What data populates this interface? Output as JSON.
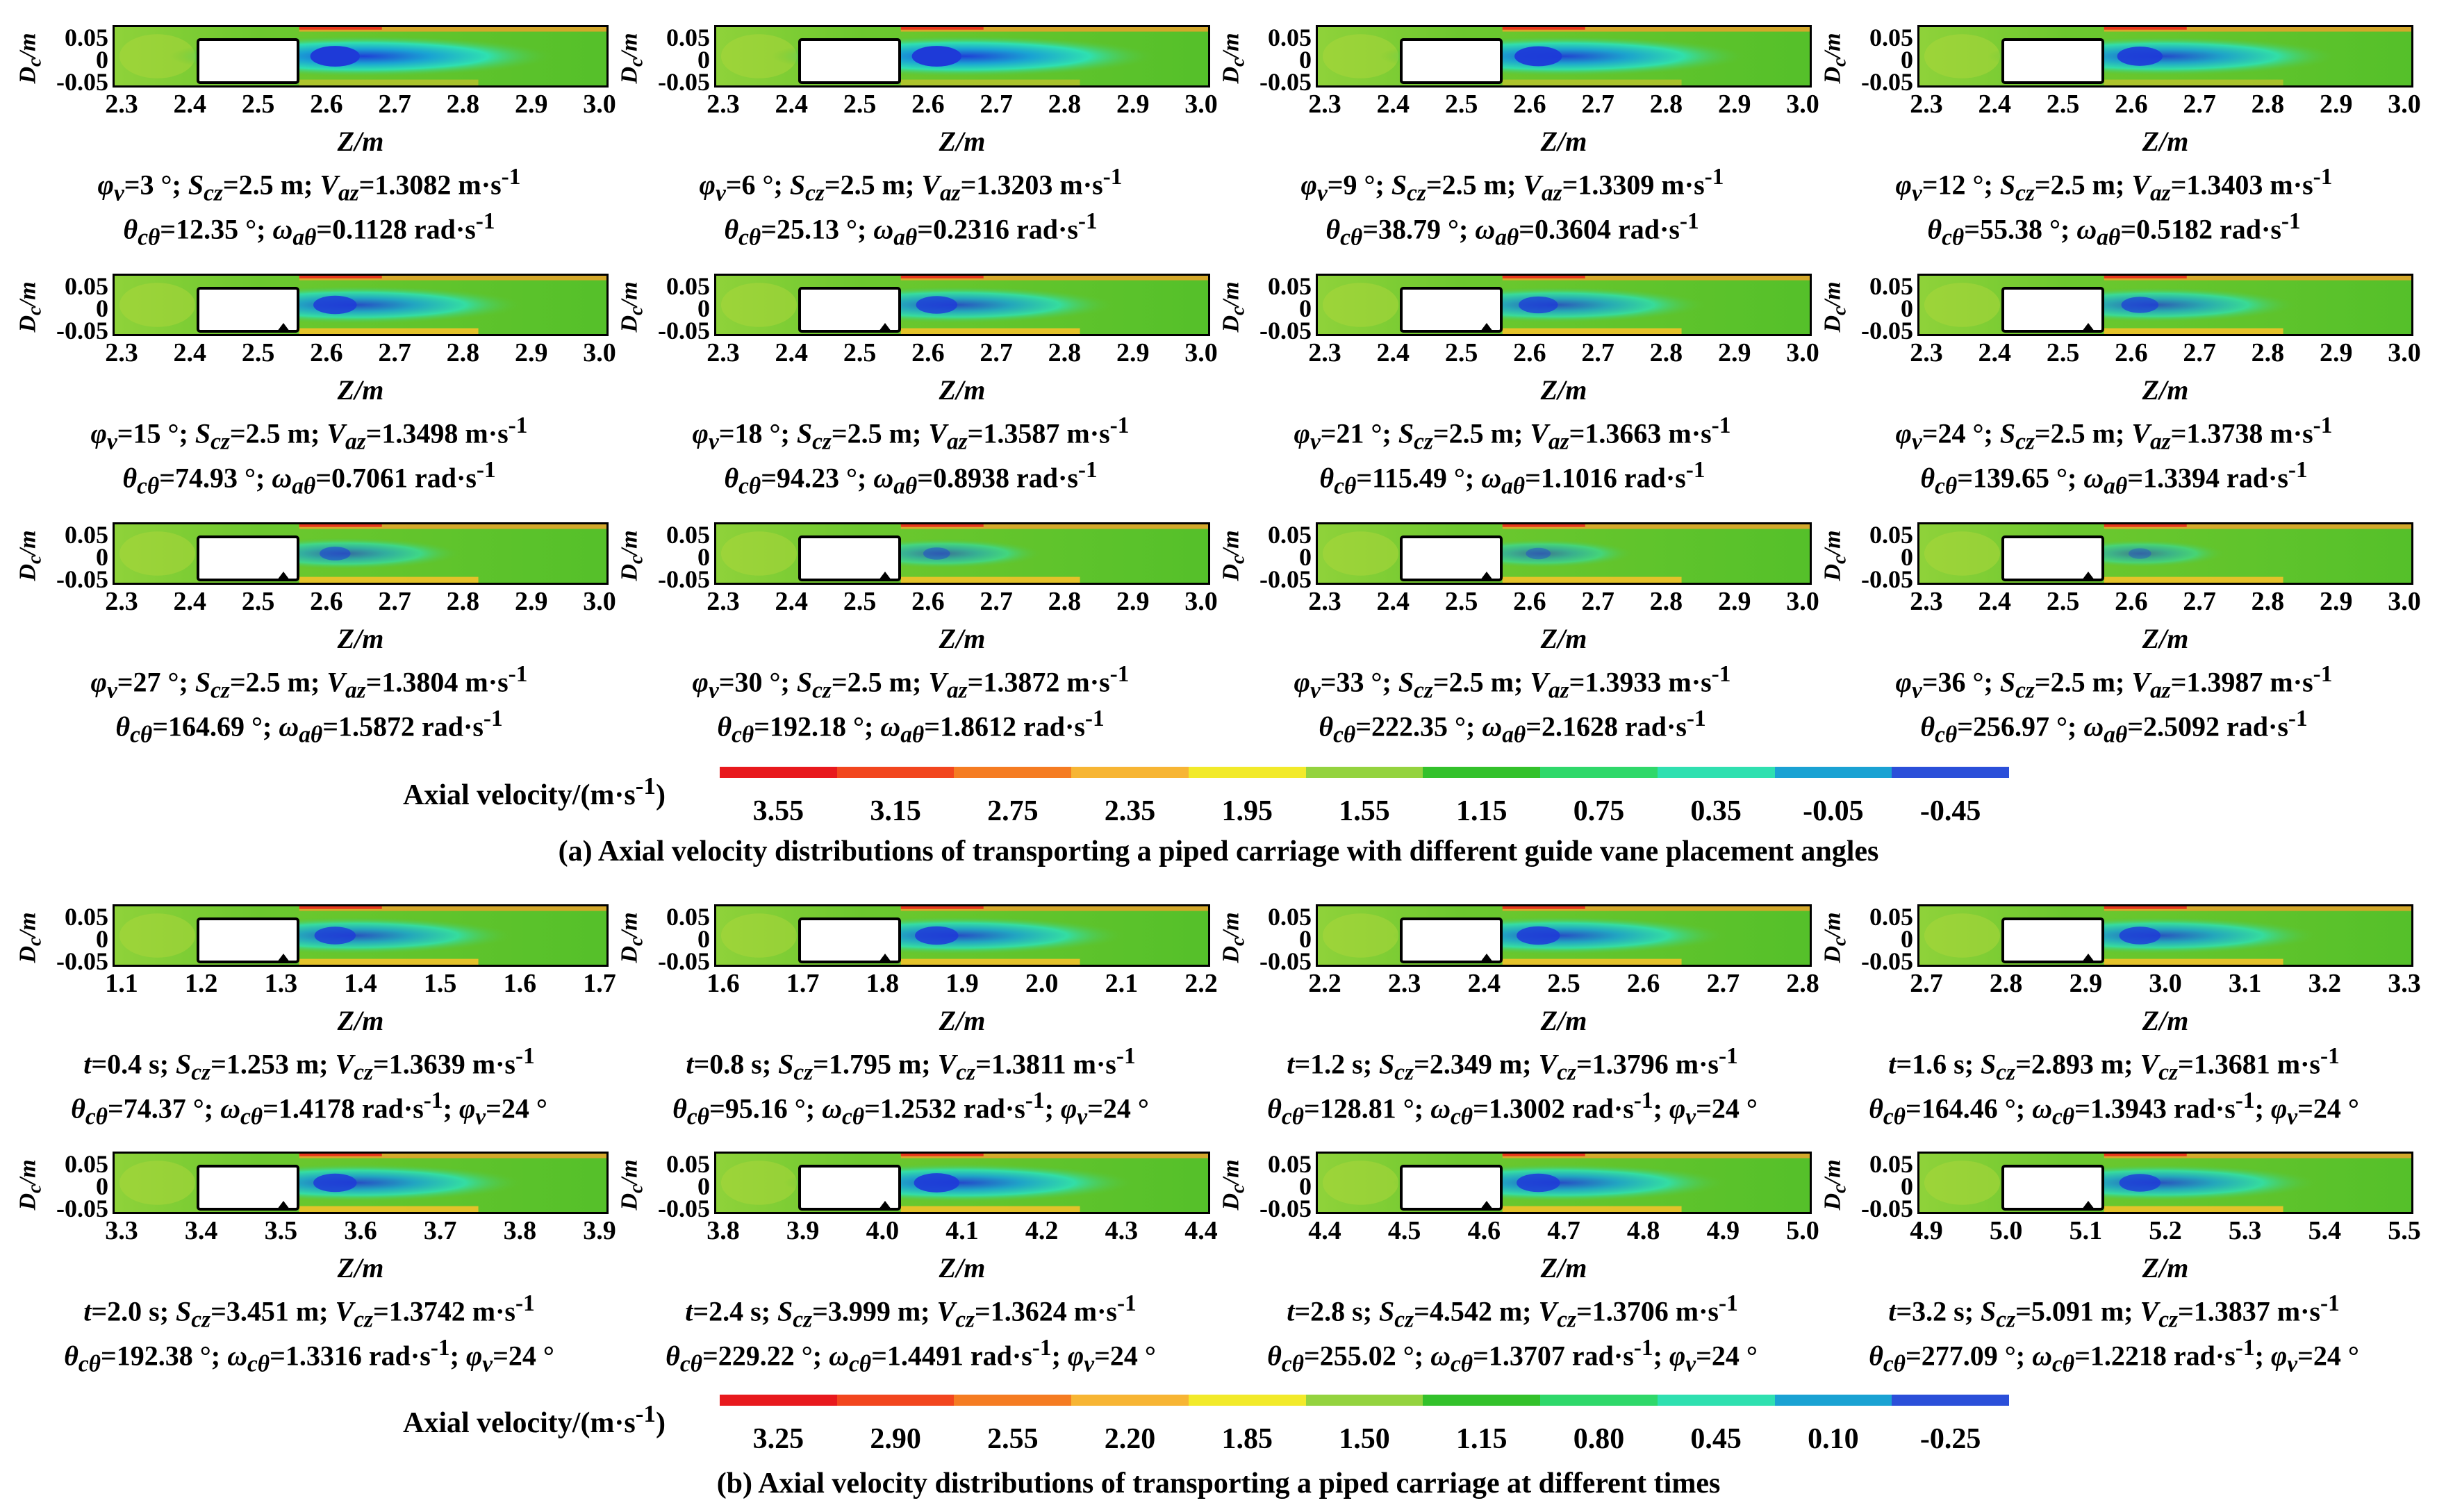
{
  "axis": {
    "ylabel": "Dc/m",
    "xlabel": "Z/m",
    "yticks": [
      "0.05",
      "0",
      "-0.05"
    ]
  },
  "colors": {
    "legend_a": [
      "#e8191d",
      "#f2461e",
      "#f57c22",
      "#f7b534",
      "#f2ea2a",
      "#94d33f",
      "#33c12b",
      "#2fd86a",
      "#2fe0b0",
      "#1aa2d3",
      "#2b4fd9"
    ],
    "legend_b": [
      "#e8191d",
      "#f2461e",
      "#f57c22",
      "#f7b534",
      "#f2ea2a",
      "#94d33f",
      "#33c12b",
      "#2fd86a",
      "#2fe0b0",
      "#1aa2d3",
      "#2b4fd9"
    ]
  },
  "panel_a": {
    "xticks": [
      "2.3",
      "2.4",
      "2.5",
      "2.6",
      "2.7",
      "2.8",
      "2.9",
      "3.0"
    ],
    "cells": [
      {
        "line1": "φv=3 °; Scz=2.5 m; Vaz=1.3082 m·s-1",
        "line2": "θcθ=12.35 °; ωaθ=0.1128 rad·s-1",
        "wake": 1.0,
        "wheel": false
      },
      {
        "line1": "φv=6 °; Scz=2.5 m; Vaz=1.3203 m·s-1",
        "line2": "θcθ=25.13 °; ωaθ=0.2316 rad·s-1",
        "wake": 1.0,
        "wheel": false
      },
      {
        "line1": "φv=9 °; Scz=2.5 m; Vaz=1.3309 m·s-1",
        "line2": "θcθ=38.79 °; ωaθ=0.3604 rad·s-1",
        "wake": 0.95,
        "wheel": false
      },
      {
        "line1": "φv=12 °; Scz=2.5 m; Vaz=1.3403 m·s-1",
        "line2": "θcθ=55.38 °; ωaθ=0.5182 rad·s-1",
        "wake": 0.9,
        "wheel": false
      },
      {
        "line1": "φv=15 °; Scz=2.5 m; Vaz=1.3498 m·s-1",
        "line2": "θcθ=74.93 °; ωaθ=0.7061 rad·s-1",
        "wake": 0.85,
        "wheel": true
      },
      {
        "line1": "φv=18 °; Scz=2.5 m; Vaz=1.3587 m·s-1",
        "line2": "θcθ=94.23 °; ωaθ=0.8938 rad·s-1",
        "wake": 0.8,
        "wheel": true
      },
      {
        "line1": "φv=21 °; Scz=2.5 m; Vaz=1.3663 m·s-1",
        "line2": "θcθ=115.49 °; ωaθ=1.1016 rad·s-1",
        "wake": 0.75,
        "wheel": true
      },
      {
        "line1": "φv=24 °; Scz=2.5 m; Vaz=1.3738 m·s-1",
        "line2": "θcθ=139.65 °; ωaθ=1.3394 rad·s-1",
        "wake": 0.7,
        "wheel": true
      },
      {
        "line1": "φv=27 °; Scz=2.5 m; Vaz=1.3804 m·s-1",
        "line2": "θcθ=164.69 °; ωaθ=1.5872 rad·s-1",
        "wake": 0.55,
        "wheel": true
      },
      {
        "line1": "φv=30 °; Scz=2.5 m; Vaz=1.3872 m·s-1",
        "line2": "θcθ=192.18 °; ωaθ=1.8612 rad·s-1",
        "wake": 0.45,
        "wheel": true
      },
      {
        "line1": "φv=33 °; Scz=2.5 m; Vaz=1.3933 m·s-1",
        "line2": "θcθ=222.35 °; ωaθ=2.1628 rad·s-1",
        "wake": 0.4,
        "wheel": true
      },
      {
        "line1": "φv=36 °; Scz=2.5 m; Vaz=1.3987 m·s-1",
        "line2": "θcθ=256.97 °; ωaθ=2.5092 rad·s-1",
        "wake": 0.35,
        "wheel": true
      }
    ]
  },
  "legend_a": {
    "title": "Axial velocity/(m·s-1)",
    "ticks": [
      "3.55",
      "3.15",
      "2.75",
      "2.35",
      "1.95",
      "1.55",
      "1.15",
      "0.75",
      "0.35",
      "-0.05",
      "-0.45"
    ]
  },
  "caption_a": "(a) Axial velocity distributions of transporting a piped carriage with different guide vane placement angles",
  "panel_b": {
    "cells": [
      {
        "xticks": [
          "1.1",
          "1.2",
          "1.3",
          "1.4",
          "1.5",
          "1.6",
          "1.7"
        ],
        "line1": "t=0.4 s; Scz=1.253 m; Vcz=1.3639 m·s-1",
        "line2": "θcθ=74.37 °; ωcθ=1.4178 rad·s-1; φv=24 °",
        "wake": 0.8
      },
      {
        "xticks": [
          "1.6",
          "1.7",
          "1.8",
          "1.9",
          "2.0",
          "2.1",
          "2.2"
        ],
        "line1": "t=0.8 s; Scz=1.795 m; Vcz=1.3811 m·s-1",
        "line2": "θcθ=95.16 °; ωcθ=1.2532 rad·s-1; φv=24 °",
        "wake": 0.85
      },
      {
        "xticks": [
          "2.2",
          "2.3",
          "2.4",
          "2.5",
          "2.6",
          "2.7",
          "2.8"
        ],
        "line1": "t=1.2 s; Scz=2.349 m; Vcz=1.3796 m·s-1",
        "line2": "θcθ=128.81 °; ωcθ=1.3002 rad·s-1; φv=24 °",
        "wake": 0.85
      },
      {
        "xticks": [
          "2.7",
          "2.8",
          "2.9",
          "3.0",
          "3.1",
          "3.2",
          "3.3"
        ],
        "line1": "t=1.6 s; Scz=2.893 m; Vcz=1.3681 m·s-1",
        "line2": "θcθ=164.46 °; ωcθ=1.3943 rad·s-1; φv=24 °",
        "wake": 0.8
      },
      {
        "xticks": [
          "3.3",
          "3.4",
          "3.5",
          "3.6",
          "3.7",
          "3.8",
          "3.9"
        ],
        "line1": "t=2.0 s; Scz=3.451 m; Vcz=1.3742 m·s-1",
        "line2": "θcθ=192.38 °; ωcθ=1.3316 rad·s-1; φv=24 °",
        "wake": 0.85
      },
      {
        "xticks": [
          "3.8",
          "3.9",
          "4.0",
          "4.1",
          "4.2",
          "4.3",
          "4.4"
        ],
        "line1": "t=2.4 s; Scz=3.999 m; Vcz=1.3624 m·s-1",
        "line2": "θcθ=229.22 °; ωcθ=1.4491 rad·s-1; φv=24 °",
        "wake": 0.9
      },
      {
        "xticks": [
          "4.4",
          "4.5",
          "4.6",
          "4.7",
          "4.8",
          "4.9",
          "5.0"
        ],
        "line1": "t=2.8 s; Scz=4.542 m; Vcz=1.3706 m·s-1",
        "line2": "θcθ=255.02 °; ωcθ=1.3707 rad·s-1; φv=24 °",
        "wake": 0.85
      },
      {
        "xticks": [
          "4.9",
          "5.0",
          "5.1",
          "5.2",
          "5.3",
          "5.4",
          "5.5"
        ],
        "line1": "t=3.2 s; Scz=5.091 m; Vcz=1.3837 m·s-1",
        "line2": "θcθ=277.09 °; ωcθ=1.2218 rad·s-1; φv=24 °",
        "wake": 0.8
      }
    ]
  },
  "legend_b": {
    "title": "Axial velocity/(m·s-1)",
    "ticks": [
      "3.25",
      "2.90",
      "2.55",
      "2.20",
      "1.85",
      "1.50",
      "1.15",
      "0.80",
      "0.45",
      "0.10",
      "-0.25"
    ]
  },
  "caption_b": "(b) Axial velocity distributions of transporting a piped carriage at different times"
}
